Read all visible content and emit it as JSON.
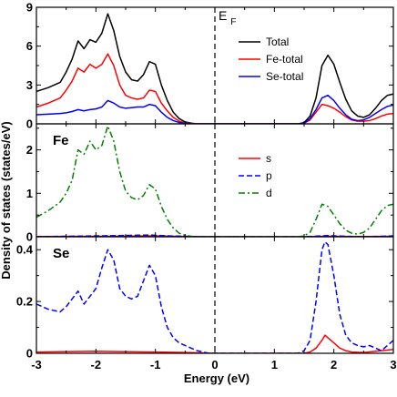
{
  "chart_data": {
    "type": "line",
    "xlabel": "Energy (eV)",
    "ylabel": "Density of states (states/eV)",
    "xlim": [
      -3,
      3
    ],
    "x_ticks": [
      -3,
      -2,
      -1,
      0,
      1,
      2,
      3
    ],
    "fermi_label": "E",
    "fermi_sub": "F",
    "fermi_energy": 0,
    "panels": [
      {
        "label": "",
        "ylim": [
          0,
          9
        ],
        "y_ticks": [
          0,
          3,
          6,
          9
        ],
        "legend_position": "top-right",
        "series": [
          {
            "name": "Total",
            "color": "#000000",
            "dash": "solid",
            "x": [
              -3.0,
              -2.8,
              -2.6,
              -2.5,
              -2.4,
              -2.3,
              -2.2,
              -2.1,
              -2.0,
              -1.9,
              -1.8,
              -1.7,
              -1.6,
              -1.5,
              -1.4,
              -1.3,
              -1.2,
              -1.1,
              -1.0,
              -0.9,
              -0.8,
              -0.7,
              -0.6,
              -0.5,
              -0.4,
              -0.3,
              -0.2,
              -0.1,
              0.0,
              0.1,
              0.2,
              0.3,
              0.4,
              0.5,
              0.6,
              0.7,
              0.8,
              0.9,
              1.0,
              1.1,
              1.2,
              1.3,
              1.4,
              1.5,
              1.6,
              1.7,
              1.8,
              1.9,
              2.0,
              2.1,
              2.2,
              2.3,
              2.4,
              2.5,
              2.6,
              2.7,
              2.8,
              2.9,
              3.0
            ],
            "y": [
              2.5,
              2.8,
              3.2,
              4.0,
              5.0,
              6.4,
              5.8,
              6.5,
              6.3,
              7.0,
              8.5,
              7.2,
              5.2,
              4.0,
              3.4,
              3.3,
              3.8,
              4.8,
              4.6,
              3.0,
              1.8,
              0.9,
              0.4,
              0.15,
              0.05,
              0.0,
              0.0,
              0.0,
              0.0,
              0.0,
              0.0,
              0.0,
              0.0,
              0.0,
              0.0,
              0.0,
              0.0,
              0.0,
              0.0,
              0.0,
              0.0,
              0.0,
              0.0,
              0.1,
              0.6,
              2.0,
              4.5,
              5.3,
              4.6,
              3.2,
              1.9,
              1.0,
              0.6,
              0.5,
              0.7,
              1.2,
              1.8,
              2.2,
              2.3
            ]
          },
          {
            "name": "Fe-total",
            "color": "#ff0000",
            "dash": "solid",
            "x": [
              -3.0,
              -2.8,
              -2.6,
              -2.5,
              -2.4,
              -2.3,
              -2.2,
              -2.1,
              -2.0,
              -1.9,
              -1.8,
              -1.7,
              -1.6,
              -1.5,
              -1.4,
              -1.3,
              -1.2,
              -1.1,
              -1.0,
              -0.9,
              -0.8,
              -0.7,
              -0.6,
              -0.5,
              -0.4,
              -0.3,
              -0.2,
              -0.1,
              0.0,
              0.1,
              0.2,
              0.3,
              0.4,
              0.5,
              0.6,
              0.7,
              0.8,
              0.9,
              1.0,
              1.1,
              1.2,
              1.3,
              1.4,
              1.5,
              1.6,
              1.7,
              1.8,
              1.9,
              2.0,
              2.1,
              2.2,
              2.3,
              2.4,
              2.5,
              2.6,
              2.7,
              2.8,
              2.9,
              3.0
            ],
            "y": [
              1.3,
              1.6,
              2.0,
              2.6,
              3.3,
              4.3,
              4.0,
              4.6,
              4.3,
              4.6,
              5.4,
              4.5,
              3.0,
              2.2,
              2.0,
              1.9,
              2.0,
              2.6,
              2.5,
              1.6,
              1.0,
              0.5,
              0.2,
              0.08,
              0.02,
              0.0,
              0.0,
              0.0,
              0.0,
              0.0,
              0.0,
              0.0,
              0.0,
              0.0,
              0.0,
              0.0,
              0.0,
              0.0,
              0.0,
              0.0,
              0.0,
              0.0,
              0.0,
              0.05,
              0.3,
              0.9,
              1.5,
              1.4,
              1.2,
              0.9,
              0.55,
              0.3,
              0.2,
              0.2,
              0.25,
              0.4,
              0.6,
              0.75,
              0.8
            ]
          },
          {
            "name": "Se-total",
            "color": "#0000ff",
            "dash": "solid",
            "x": [
              -3.0,
              -2.8,
              -2.6,
              -2.5,
              -2.4,
              -2.3,
              -2.2,
              -2.1,
              -2.0,
              -1.9,
              -1.8,
              -1.7,
              -1.6,
              -1.5,
              -1.4,
              -1.3,
              -1.2,
              -1.1,
              -1.0,
              -0.9,
              -0.8,
              -0.7,
              -0.6,
              -0.5,
              -0.4,
              -0.3,
              -0.2,
              -0.1,
              0.0,
              0.1,
              0.2,
              0.3,
              0.4,
              0.5,
              0.6,
              0.7,
              0.8,
              0.9,
              1.0,
              1.1,
              1.2,
              1.3,
              1.4,
              1.5,
              1.6,
              1.7,
              1.8,
              1.9,
              2.0,
              2.1,
              2.2,
              2.3,
              2.4,
              2.5,
              2.6,
              2.7,
              2.8,
              2.9,
              3.0
            ],
            "y": [
              0.7,
              0.75,
              0.8,
              0.85,
              0.95,
              1.1,
              1.0,
              1.1,
              1.15,
              1.3,
              1.8,
              1.6,
              1.3,
              1.2,
              1.25,
              1.3,
              1.3,
              1.5,
              1.4,
              0.9,
              0.5,
              0.25,
              0.1,
              0.04,
              0.01,
              0.0,
              0.0,
              0.0,
              0.0,
              0.0,
              0.0,
              0.0,
              0.0,
              0.0,
              0.0,
              0.0,
              0.0,
              0.0,
              0.0,
              0.0,
              0.0,
              0.0,
              0.0,
              0.05,
              0.4,
              1.1,
              2.0,
              2.2,
              1.8,
              1.2,
              0.7,
              0.35,
              0.25,
              0.3,
              0.5,
              0.8,
              1.1,
              1.35,
              1.45
            ]
          }
        ]
      },
      {
        "label": "Fe",
        "ylim": [
          0,
          2.6
        ],
        "y_ticks": [
          0,
          1,
          2
        ],
        "legend_position": "top-right",
        "series": [
          {
            "name": "s",
            "color": "#ff0000",
            "dash": "solid",
            "x": [
              -3.0,
              -2.0,
              -1.5,
              -1.0,
              -0.5,
              0.0,
              1.0,
              1.5,
              1.85,
              2.0,
              2.5,
              3.0
            ],
            "y": [
              0.005,
              0.01,
              0.015,
              0.02,
              0.005,
              0.0,
              0.0,
              0.0,
              0.01,
              0.01,
              0.005,
              0.01
            ]
          },
          {
            "name": "p",
            "color": "#0000ff",
            "dash": "dashed",
            "x": [
              -3.0,
              -2.5,
              -2.0,
              -1.5,
              -1.1,
              -0.8,
              -0.5,
              -0.2,
              0.0,
              1.0,
              1.5,
              1.8,
              1.9,
              2.0,
              2.2,
              2.5,
              2.8,
              3.0
            ],
            "y": [
              0.0,
              0.01,
              0.02,
              0.03,
              0.04,
              0.02,
              0.01,
              0.0,
              0.0,
              0.0,
              0.0,
              0.02,
              0.03,
              0.02,
              0.01,
              0.0,
              0.01,
              0.02
            ]
          },
          {
            "name": "d",
            "color": "#008000",
            "dash": "dashdot",
            "x": [
              -3.0,
              -2.8,
              -2.6,
              -2.5,
              -2.4,
              -2.3,
              -2.2,
              -2.1,
              -2.0,
              -1.9,
              -1.8,
              -1.7,
              -1.6,
              -1.5,
              -1.4,
              -1.3,
              -1.2,
              -1.1,
              -1.0,
              -0.9,
              -0.8,
              -0.7,
              -0.6,
              -0.5,
              -0.4,
              -0.3,
              -0.2,
              -0.1,
              0.0,
              0.5,
              1.0,
              1.4,
              1.5,
              1.6,
              1.7,
              1.8,
              1.9,
              2.0,
              2.1,
              2.2,
              2.3,
              2.4,
              2.5,
              2.6,
              2.7,
              2.8,
              2.9,
              3.0
            ],
            "y": [
              0.45,
              0.6,
              0.8,
              1.0,
              1.3,
              2.0,
              1.9,
              2.2,
              2.0,
              2.1,
              2.55,
              2.2,
              1.5,
              1.05,
              0.9,
              0.85,
              0.95,
              1.2,
              1.1,
              0.7,
              0.4,
              0.2,
              0.08,
              0.03,
              0.01,
              0.0,
              0.0,
              0.0,
              0.0,
              0.0,
              0.0,
              0.0,
              0.02,
              0.1,
              0.4,
              0.75,
              0.7,
              0.5,
              0.3,
              0.15,
              0.08,
              0.06,
              0.1,
              0.2,
              0.4,
              0.6,
              0.72,
              0.75
            ]
          }
        ]
      },
      {
        "label": "Se",
        "ylim": [
          0,
          0.45
        ],
        "y_ticks": [
          0,
          0.2,
          0.4
        ],
        "legend_position": "none",
        "series": [
          {
            "name": "s",
            "color": "#ff0000",
            "dash": "solid",
            "x": [
              -3.0,
              -2.0,
              -1.5,
              -1.0,
              -0.5,
              0.0,
              1.0,
              1.5,
              1.6,
              1.7,
              1.8,
              1.85,
              1.9,
              2.0,
              2.1,
              2.2,
              2.3,
              2.5,
              2.8,
              3.0
            ],
            "y": [
              0.005,
              0.008,
              0.006,
              0.005,
              0.003,
              0.0,
              0.0,
              0.0,
              0.005,
              0.02,
              0.05,
              0.07,
              0.06,
              0.04,
              0.02,
              0.01,
              0.005,
              0.003,
              0.01,
              0.015
            ]
          },
          {
            "name": "p",
            "color": "#0000ff",
            "dash": "dashed",
            "x": [
              -3.0,
              -2.8,
              -2.6,
              -2.5,
              -2.4,
              -2.3,
              -2.2,
              -2.1,
              -2.0,
              -1.9,
              -1.8,
              -1.7,
              -1.6,
              -1.5,
              -1.4,
              -1.3,
              -1.2,
              -1.1,
              -1.0,
              -0.9,
              -0.8,
              -0.7,
              -0.6,
              -0.5,
              -0.4,
              -0.3,
              -0.2,
              -0.1,
              0.0,
              0.5,
              1.0,
              1.4,
              1.5,
              1.6,
              1.7,
              1.8,
              1.85,
              1.9,
              2.0,
              2.1,
              2.2,
              2.3,
              2.4,
              2.5,
              2.6,
              2.7,
              2.8,
              2.9,
              3.0
            ],
            "y": [
              0.19,
              0.17,
              0.16,
              0.18,
              0.21,
              0.24,
              0.19,
              0.22,
              0.25,
              0.33,
              0.4,
              0.36,
              0.25,
              0.22,
              0.21,
              0.22,
              0.28,
              0.34,
              0.3,
              0.18,
              0.1,
              0.06,
              0.04,
              0.03,
              0.02,
              0.01,
              0.005,
              0.0,
              0.0,
              0.0,
              0.0,
              0.0,
              0.01,
              0.05,
              0.2,
              0.4,
              0.43,
              0.42,
              0.3,
              0.15,
              0.07,
              0.04,
              0.03,
              0.025,
              0.03,
              0.02,
              0.01,
              0.03,
              0.05
            ]
          }
        ]
      }
    ]
  }
}
